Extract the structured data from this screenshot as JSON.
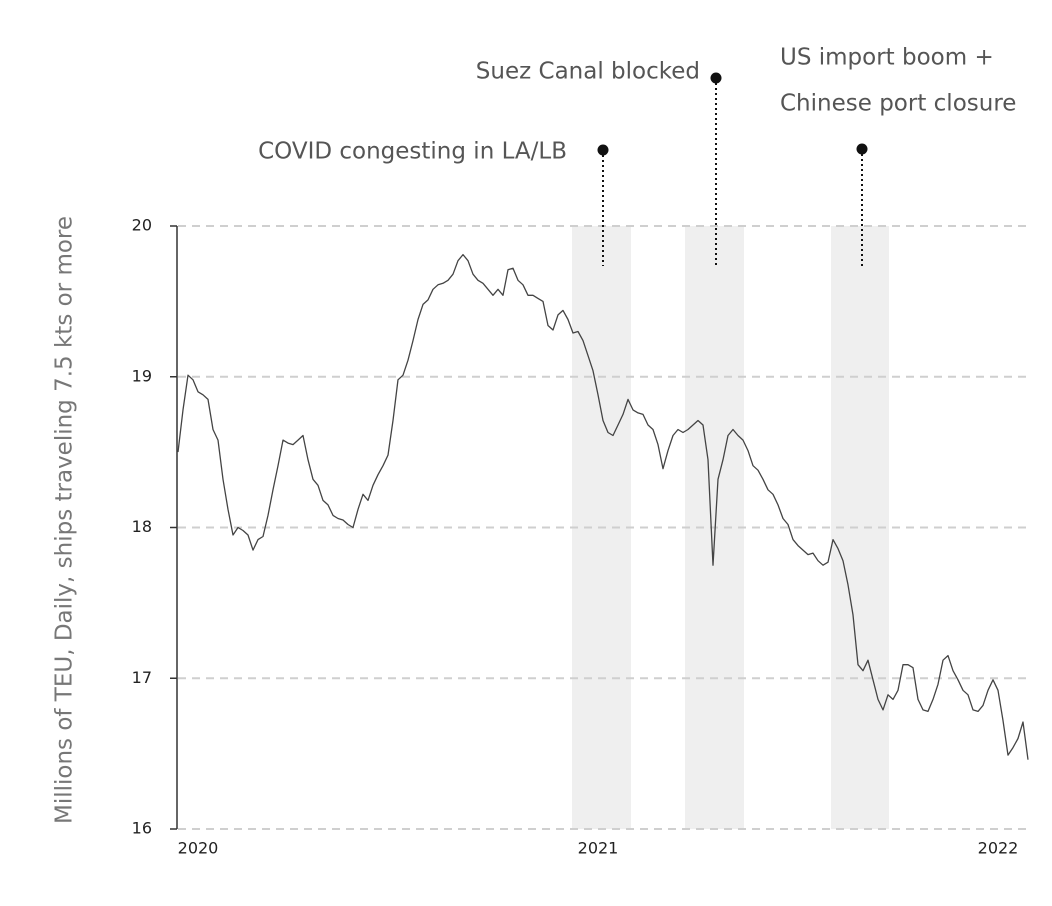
{
  "chart_data": {
    "type": "line",
    "ylabel": "Millions of TEU, Daily, ships traveling 7.5 kts or more",
    "xlim": [
      2019.95,
      2022.075
    ],
    "xticks": [
      2020,
      2021,
      2022
    ],
    "ylim": [
      16,
      20
    ],
    "yticks": [
      16,
      17,
      18,
      19,
      20
    ],
    "grid": true,
    "bands": [
      {
        "start": 2020.935,
        "end": 2021.0825
      },
      {
        "start": 2021.2175,
        "end": 2021.365
      },
      {
        "start": 2021.5825,
        "end": 2021.7275
      }
    ],
    "band_color": "#efefef",
    "annotations": [
      {
        "x": 2021.0125,
        "lines": [
          "COVID congesting in LA/LB"
        ]
      },
      {
        "x": 2021.295,
        "lines": [
          "Suez Canal blocked"
        ]
      },
      {
        "x": 2021.66,
        "lines": [
          "US import boom +",
          "Chinese port closure"
        ]
      }
    ],
    "x": [
      2019.95,
      2019.9625,
      2019.975,
      2019.9875,
      2020,
      2020.0125,
      2020.025,
      2020.0375,
      2020.05,
      2020.0625,
      2020.075,
      2020.0875,
      2020.1,
      2020.1125,
      2020.125,
      2020.1375,
      2020.15,
      2020.1625,
      2020.175,
      2020.1875,
      2020.2,
      2020.2125,
      2020.225,
      2020.2375,
      2020.25,
      2020.2625,
      2020.275,
      2020.2875,
      2020.3,
      2020.3125,
      2020.325,
      2020.3375,
      2020.35,
      2020.3625,
      2020.375,
      2020.3875,
      2020.4,
      2020.4125,
      2020.425,
      2020.4375,
      2020.45,
      2020.4625,
      2020.475,
      2020.4875,
      2020.5,
      2020.5125,
      2020.525,
      2020.5375,
      2020.55,
      2020.5625,
      2020.575,
      2020.5875,
      2020.6,
      2020.6125,
      2020.625,
      2020.6375,
      2020.65,
      2020.6625,
      2020.675,
      2020.6875,
      2020.7,
      2020.7125,
      2020.725,
      2020.7375,
      2020.75,
      2020.7625,
      2020.775,
      2020.7875,
      2020.8,
      2020.8125,
      2020.825,
      2020.8375,
      2020.85,
      2020.8625,
      2020.875,
      2020.8875,
      2020.9,
      2020.9125,
      2020.925,
      2020.9375,
      2020.95,
      2020.9625,
      2020.975,
      2020.9875,
      2021,
      2021.0125,
      2021.025,
      2021.0375,
      2021.05,
      2021.0625,
      2021.075,
      2021.0875,
      2021.1,
      2021.1125,
      2021.125,
      2021.1375,
      2021.15,
      2021.1625,
      2021.175,
      2021.1875,
      2021.2,
      2021.2125,
      2021.225,
      2021.2375,
      2021.25,
      2021.2625,
      2021.275,
      2021.2875,
      2021.3,
      2021.3125,
      2021.325,
      2021.3375,
      2021.35,
      2021.3625,
      2021.375,
      2021.3875,
      2021.4,
      2021.4125,
      2021.425,
      2021.4375,
      2021.45,
      2021.4625,
      2021.475,
      2021.4875,
      2021.5,
      2021.5125,
      2021.525,
      2021.5375,
      2021.55,
      2021.5625,
      2021.575,
      2021.5875,
      2021.6,
      2021.6125,
      2021.625,
      2021.6375,
      2021.65,
      2021.6625,
      2021.675,
      2021.6875,
      2021.7,
      2021.7125,
      2021.725,
      2021.7375,
      2021.75,
      2021.7625,
      2021.775,
      2021.7875,
      2021.8,
      2021.8125,
      2021.825,
      2021.8375,
      2021.85,
      2021.8625,
      2021.875,
      2021.8875,
      2021.9,
      2021.9125,
      2021.925,
      2021.9375,
      2021.95,
      2021.9625,
      2021.975,
      2021.9875,
      2022,
      2022.0125,
      2022.025,
      2022.0375,
      2022.05,
      2022.0625,
      2022.075
    ],
    "series": [
      {
        "color": "#444444",
        "values": [
          18.5,
          18.78,
          19.01,
          18.98,
          18.9,
          18.88,
          18.85,
          18.65,
          18.58,
          18.32,
          18.12,
          17.95,
          18.0,
          17.98,
          17.95,
          17.85,
          17.92,
          17.94,
          18.08,
          18.25,
          18.41,
          18.58,
          18.56,
          18.55,
          18.58,
          18.61,
          18.45,
          18.32,
          18.28,
          18.18,
          18.15,
          18.08,
          18.06,
          18.05,
          18.02,
          18.0,
          18.12,
          18.22,
          18.18,
          18.28,
          18.35,
          18.41,
          18.48,
          18.71,
          18.98,
          19.01,
          19.11,
          19.24,
          19.38,
          19.48,
          19.51,
          19.58,
          19.61,
          19.62,
          19.64,
          19.68,
          19.77,
          19.81,
          19.77,
          19.68,
          19.64,
          19.62,
          19.58,
          19.54,
          19.58,
          19.54,
          19.71,
          19.72,
          19.64,
          19.61,
          19.54,
          19.54,
          19.52,
          19.5,
          19.34,
          19.31,
          19.41,
          19.44,
          19.38,
          19.29,
          19.3,
          19.24,
          19.14,
          19.04,
          18.88,
          18.71,
          18.63,
          18.61,
          18.68,
          18.75,
          18.85,
          18.78,
          18.76,
          18.75,
          18.68,
          18.65,
          18.55,
          18.39,
          18.51,
          18.61,
          18.65,
          18.63,
          18.65,
          18.68,
          18.71,
          18.68,
          18.45,
          17.75,
          18.32,
          18.45,
          18.61,
          18.65,
          18.61,
          18.58,
          18.51,
          18.41,
          18.38,
          18.32,
          18.25,
          18.22,
          18.15,
          18.06,
          18.02,
          17.92,
          17.88,
          17.85,
          17.82,
          17.83,
          17.78,
          17.75,
          17.77,
          17.92,
          17.86,
          17.78,
          17.62,
          17.42,
          17.09,
          17.05,
          17.12,
          16.99,
          16.86,
          16.79,
          16.89,
          16.86,
          16.92,
          17.09,
          17.09,
          17.07,
          16.86,
          16.79,
          16.78,
          16.86,
          16.96,
          17.12,
          17.15,
          17.05,
          16.99,
          16.92,
          16.89,
          16.79,
          16.78,
          16.82,
          16.92,
          16.99,
          16.92,
          16.72,
          16.49,
          16.54,
          16.6,
          16.71,
          16.46
        ]
      }
    ]
  }
}
